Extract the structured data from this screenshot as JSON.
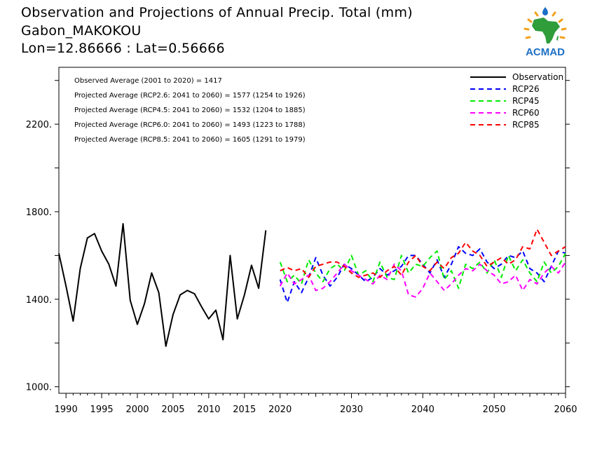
{
  "header": {
    "title": "Observation and Projections of Annual Precip. Total (mm)",
    "location": "Gabon_MAKOKOU",
    "coords": "Lon=12.86666 : Lat=0.56666"
  },
  "logo": {
    "text": "ACMAD",
    "icon": "acmad-africa-sun-logo"
  },
  "colors": {
    "Observation": "#000000",
    "RCP26": "#0000ff",
    "RCP45": "#00ee00",
    "RCP60": "#ff00ff",
    "RCP85": "#ff0000"
  },
  "chart_data": {
    "type": "line",
    "x_range": [
      1989,
      2060
    ],
    "ylim": [
      970,
      2460
    ],
    "y_ticks": [
      1000,
      1400,
      1800,
      2200
    ],
    "y_tick_labels": [
      "1000.",
      "1400.",
      "1800.",
      "2200."
    ],
    "x_ticks": [
      1990,
      1995,
      2000,
      2005,
      2010,
      2015,
      2020,
      2030,
      2040,
      2050,
      2060
    ],
    "x_tick_labels": [
      "1990",
      "1995",
      "2000",
      "2005",
      "2010",
      "2015",
      "2020",
      "2030",
      "2040",
      "2050",
      "2060"
    ],
    "annotations": [
      "Observed Average (2001 to 2020) = 1417",
      "Projected Average (RCP2.6: 2041 to 2060) = 1577 (1254 to 1926)",
      "Projected Average (RCP4.5: 2041 to 2060) = 1532 (1204 to 1885)",
      "Projected Average (RCP6.0: 2041 to 2060) = 1493 (1223 to 1788)",
      "Projected Average (RCP8.5: 2041 to 2060) = 1605 (1291 to 1979)"
    ],
    "legend_position": "top-right",
    "series": [
      {
        "name": "Observation",
        "style": "solid",
        "x_start": 1989,
        "values": [
          1610,
          1460,
          1300,
          1540,
          1680,
          1700,
          1620,
          1560,
          1460,
          1745,
          1395,
          1285,
          1380,
          1520,
          1430,
          1185,
          1330,
          1420,
          1440,
          1425,
          1365,
          1310,
          1350,
          1215,
          1600,
          1310,
          1420,
          1555,
          1450,
          1715
        ]
      },
      {
        "name": "RCP26",
        "style": "dashed",
        "x_start": 2020,
        "values": [
          1490,
          1385,
          1480,
          1430,
          1500,
          1590,
          1510,
          1460,
          1500,
          1560,
          1540,
          1510,
          1480,
          1500,
          1540,
          1510,
          1530,
          1550,
          1600,
          1600,
          1560,
          1520,
          1580,
          1500,
          1560,
          1640,
          1610,
          1600,
          1630,
          1570,
          1540,
          1560,
          1600,
          1590,
          1620,
          1540,
          1520,
          1480,
          1550,
          1620,
          1610
        ]
      },
      {
        "name": "RCP45",
        "style": "dashed",
        "x_start": 2020,
        "values": [
          1570,
          1480,
          1510,
          1470,
          1580,
          1520,
          1480,
          1540,
          1560,
          1530,
          1600,
          1510,
          1530,
          1480,
          1570,
          1500,
          1490,
          1600,
          1520,
          1560,
          1550,
          1590,
          1620,
          1490,
          1530,
          1450,
          1560,
          1540,
          1570,
          1520,
          1580,
          1500,
          1600,
          1530,
          1580,
          1520,
          1480,
          1570,
          1520,
          1550,
          1610
        ]
      },
      {
        "name": "RCP60",
        "style": "dashed",
        "x_start": 2020,
        "values": [
          1460,
          1520,
          1470,
          1490,
          1510,
          1440,
          1450,
          1480,
          1520,
          1560,
          1530,
          1510,
          1490,
          1470,
          1510,
          1490,
          1560,
          1530,
          1420,
          1410,
          1450,
          1520,
          1480,
          1440,
          1470,
          1510,
          1540,
          1530,
          1560,
          1530,
          1510,
          1470,
          1480,
          1510,
          1440,
          1490,
          1470,
          1520,
          1550,
          1520,
          1570
        ]
      },
      {
        "name": "RCP85",
        "style": "dashed",
        "x_start": 2020,
        "values": [
          1530,
          1545,
          1530,
          1540,
          1500,
          1550,
          1560,
          1570,
          1570,
          1550,
          1520,
          1500,
          1510,
          1520,
          1500,
          1530,
          1550,
          1510,
          1570,
          1600,
          1550,
          1530,
          1570,
          1540,
          1590,
          1610,
          1660,
          1620,
          1600,
          1550,
          1570,
          1590,
          1560,
          1580,
          1640,
          1630,
          1720,
          1660,
          1600,
          1620,
          1640
        ]
      }
    ]
  }
}
